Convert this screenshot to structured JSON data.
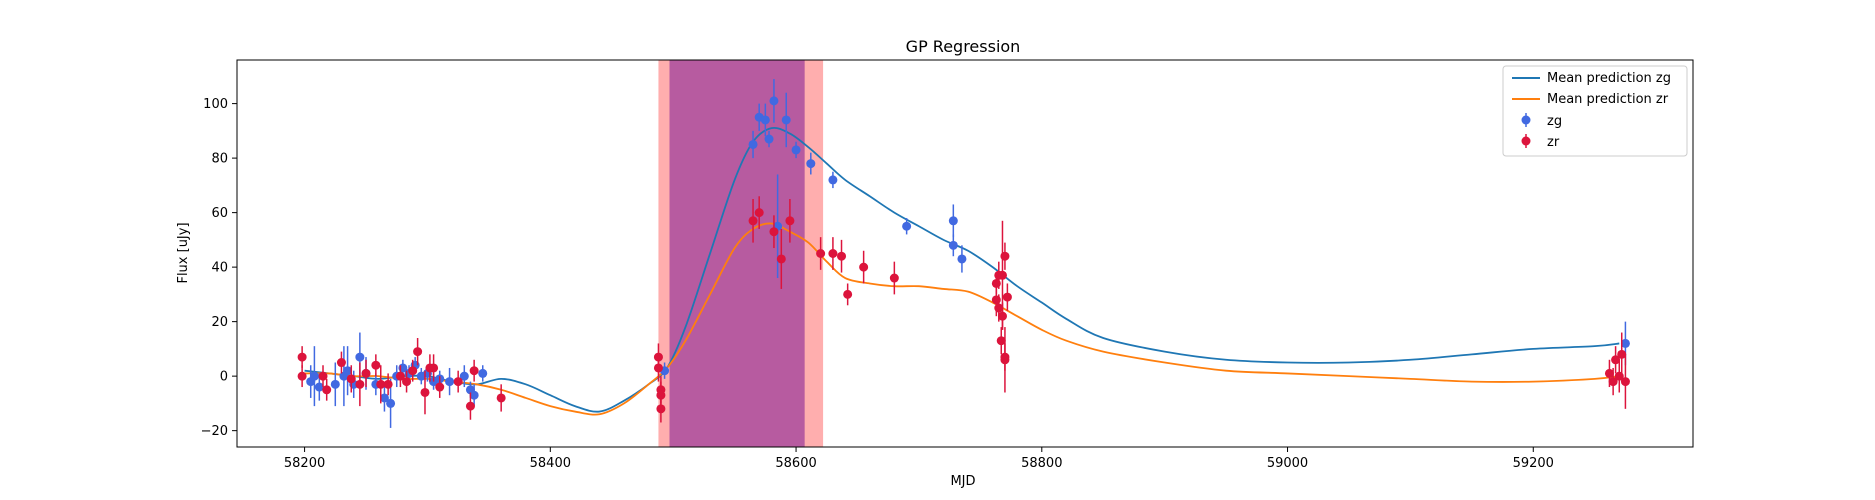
{
  "chart_data": {
    "type": "scatter",
    "title": "GP Regression",
    "xlabel": "MJD",
    "ylabel": "Flux [uJy]",
    "xlim": [
      58145,
      59330
    ],
    "ylim": [
      -26,
      116
    ],
    "xticks": [
      58200,
      58400,
      58600,
      58800,
      59000,
      59200
    ],
    "yticks": [
      -20,
      0,
      20,
      40,
      60,
      80,
      100
    ],
    "grid": false,
    "legend_position": "top-right",
    "shaded_regions": [
      {
        "x0": 58488,
        "x1": 58622,
        "color": "#ff6b6b",
        "opacity": 0.55
      },
      {
        "x0": 58497,
        "x1": 58607,
        "color": "#9b3b9b",
        "opacity": 0.72
      }
    ],
    "lines": [
      {
        "name": "Mean prediction zg",
        "color": "#1f77b4",
        "x": [
          58200,
          58220,
          58240,
          58260,
          58280,
          58300,
          58320,
          58340,
          58360,
          58380,
          58400,
          58420,
          58440,
          58460,
          58480,
          58495,
          58510,
          58530,
          58550,
          58565,
          58580,
          58595,
          58610,
          58625,
          58640,
          58660,
          58680,
          58700,
          58720,
          58740,
          58760,
          58780,
          58800,
          58820,
          58850,
          58900,
          58950,
          59000,
          59050,
          59100,
          59150,
          59200,
          59250,
          59270
        ],
        "y": [
          2,
          1,
          0,
          -1,
          0,
          0,
          -2,
          -3,
          -1,
          -3,
          -7,
          -11,
          -13,
          -9,
          -3,
          3,
          18,
          45,
          72,
          86,
          91,
          89,
          84,
          78,
          72,
          66,
          60,
          55,
          50,
          46,
          40,
          33,
          27,
          21,
          14,
          9,
          6,
          5,
          5,
          6,
          8,
          10,
          11,
          12
        ]
      },
      {
        "name": "Mean prediction zr",
        "color": "#ff7f0e",
        "x": [
          58200,
          58220,
          58240,
          58260,
          58280,
          58300,
          58320,
          58340,
          58360,
          58380,
          58400,
          58420,
          58440,
          58460,
          58480,
          58495,
          58510,
          58530,
          58550,
          58565,
          58580,
          58595,
          58610,
          58625,
          58640,
          58660,
          58680,
          58700,
          58720,
          58740,
          58760,
          58780,
          58800,
          58820,
          58850,
          58900,
          58950,
          59000,
          59050,
          59100,
          59150,
          59200,
          59250,
          59270
        ],
        "y": [
          1,
          1,
          0,
          0,
          -1,
          -1,
          -2,
          -3,
          -5,
          -8,
          -11,
          -13,
          -14,
          -10,
          -3,
          3,
          13,
          30,
          47,
          54,
          56,
          53,
          49,
          42,
          36,
          34,
          33,
          33,
          32,
          31,
          27,
          22,
          17,
          13,
          9,
          5,
          2,
          1,
          0,
          -1,
          -2,
          -2,
          -1,
          0
        ]
      }
    ],
    "series": [
      {
        "name": "zg",
        "color": "#4169e1",
        "points": [
          [
            58205,
            -2,
            6
          ],
          [
            58208,
            0,
            11
          ],
          [
            58212,
            -4,
            5
          ],
          [
            58225,
            -3,
            8
          ],
          [
            58232,
            0,
            11
          ],
          [
            58235,
            2,
            9
          ],
          [
            58240,
            -3,
            5
          ],
          [
            58245,
            7,
            9
          ],
          [
            58250,
            1,
            6
          ],
          [
            58258,
            -3,
            4
          ],
          [
            58265,
            -8,
            5
          ],
          [
            58270,
            -10,
            9
          ],
          [
            58275,
            0,
            4
          ],
          [
            58280,
            3,
            3
          ],
          [
            58285,
            1,
            3
          ],
          [
            58290,
            4,
            3
          ],
          [
            58295,
            0,
            3
          ],
          [
            58300,
            1,
            3
          ],
          [
            58305,
            -2,
            3
          ],
          [
            58310,
            -1,
            3
          ],
          [
            58318,
            -2,
            5
          ],
          [
            58330,
            0,
            4
          ],
          [
            58335,
            -5,
            3
          ],
          [
            58338,
            -7,
            4
          ],
          [
            58345,
            1,
            3
          ],
          [
            58493,
            2,
            3
          ],
          [
            58565,
            85,
            5
          ],
          [
            58570,
            95,
            5
          ],
          [
            58575,
            94,
            6
          ],
          [
            58578,
            87,
            3
          ],
          [
            58582,
            101,
            8
          ],
          [
            58585,
            55,
            19
          ],
          [
            58592,
            94,
            10
          ],
          [
            58600,
            83,
            3
          ],
          [
            58612,
            78,
            4
          ],
          [
            58630,
            72,
            3
          ],
          [
            58690,
            55,
            3
          ],
          [
            58728,
            57,
            6
          ],
          [
            58728,
            48,
            4
          ],
          [
            58735,
            43,
            5
          ],
          [
            59275,
            12,
            8
          ]
        ]
      },
      {
        "name": "zr",
        "color": "#dc143c",
        "points": [
          [
            58198,
            7,
            4
          ],
          [
            58198,
            0,
            4
          ],
          [
            58215,
            0,
            4
          ],
          [
            58218,
            -5,
            4
          ],
          [
            58230,
            5,
            4
          ],
          [
            58238,
            -1,
            5
          ],
          [
            58245,
            -3,
            8
          ],
          [
            58250,
            1,
            5
          ],
          [
            58258,
            4,
            4
          ],
          [
            58262,
            -3,
            7
          ],
          [
            58268,
            -3,
            4
          ],
          [
            58278,
            0,
            4
          ],
          [
            58283,
            -2,
            4
          ],
          [
            58288,
            2,
            4
          ],
          [
            58292,
            9,
            5
          ],
          [
            58298,
            -6,
            8
          ],
          [
            58302,
            3,
            5
          ],
          [
            58305,
            3,
            5
          ],
          [
            58310,
            -4,
            4
          ],
          [
            58325,
            -2,
            4
          ],
          [
            58335,
            -11,
            5
          ],
          [
            58338,
            2,
            4
          ],
          [
            58360,
            -8,
            5
          ],
          [
            58488,
            3,
            5
          ],
          [
            58488,
            7,
            5
          ],
          [
            58490,
            -5,
            5
          ],
          [
            58490,
            -7,
            5
          ],
          [
            58490,
            -12,
            5
          ],
          [
            58565,
            57,
            8
          ],
          [
            58570,
            60,
            6
          ],
          [
            58582,
            53,
            6
          ],
          [
            58588,
            43,
            11
          ],
          [
            58595,
            57,
            8
          ],
          [
            58620,
            45,
            6
          ],
          [
            58630,
            45,
            6
          ],
          [
            58637,
            44,
            6
          ],
          [
            58642,
            30,
            4
          ],
          [
            58655,
            40,
            6
          ],
          [
            58680,
            36,
            6
          ],
          [
            58763,
            34,
            4
          ],
          [
            58763,
            28,
            6
          ],
          [
            58765,
            37,
            5
          ],
          [
            58765,
            25,
            5
          ],
          [
            58767,
            13,
            5
          ],
          [
            58768,
            22,
            5
          ],
          [
            58768,
            37,
            20
          ],
          [
            58770,
            44,
            5
          ],
          [
            58770,
            7,
            5
          ],
          [
            58770,
            6,
            12
          ],
          [
            58772,
            29,
            5
          ],
          [
            59262,
            1,
            5
          ],
          [
            59265,
            -2,
            5
          ],
          [
            59267,
            6,
            5
          ],
          [
            59270,
            0,
            6
          ],
          [
            59272,
            8,
            8
          ],
          [
            59275,
            -2,
            10
          ]
        ]
      }
    ]
  }
}
